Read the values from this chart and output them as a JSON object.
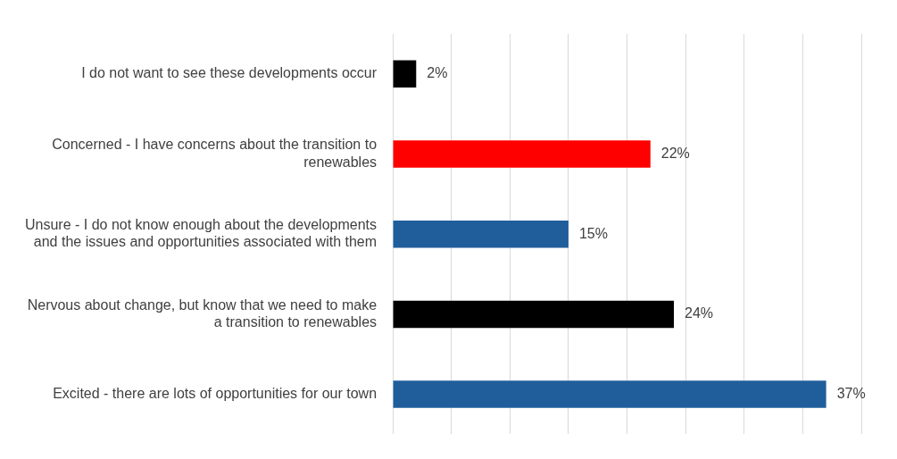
{
  "chart_data": {
    "type": "bar",
    "orientation": "horizontal",
    "categories": [
      "I do not want to see these developments occur",
      "Concerned - I have concerns about the transition to renewables",
      "Unsure - I do not know enough about the developments and the issues and opportunities associated with them",
      "Nervous about change, but know that we need to make a transition to renewables",
      "Excited - there are lots of opportunities for our town"
    ],
    "values": [
      2,
      22,
      15,
      24,
      37
    ],
    "colors": [
      "#000000",
      "#ff0000",
      "#205e9b",
      "#000000",
      "#205e9b"
    ],
    "value_labels": [
      "2%",
      "22%",
      "15%",
      "24%",
      "37%"
    ],
    "xlim": [
      0,
      40
    ],
    "xticks": [
      {
        "value": 0,
        "label": null
      },
      {
        "value": 5,
        "label": null
      },
      {
        "value": 10,
        "label": null
      },
      {
        "value": 15,
        "label": null
      },
      {
        "value": 20,
        "label": null
      },
      {
        "value": 25,
        "label": null
      },
      {
        "value": 30,
        "label": null
      },
      {
        "value": 35,
        "label": null
      },
      {
        "value": 40,
        "label": null
      }
    ],
    "grid": "x",
    "tick_labels": "y",
    "legend": false
  }
}
